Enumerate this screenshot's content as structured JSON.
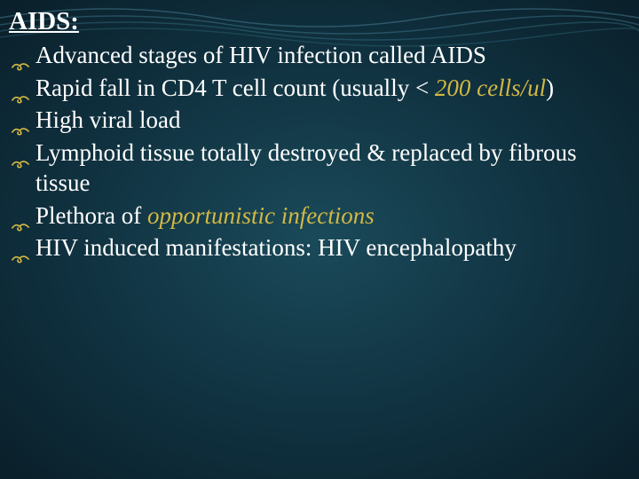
{
  "slide": {
    "title": "AIDS:",
    "bullets": [
      {
        "segments": [
          {
            "text": "Advanced stages of HIV  infection called AIDS",
            "style": "normal"
          }
        ]
      },
      {
        "segments": [
          {
            "text": "Rapid fall in CD4 T cell count (usually < ",
            "style": "normal"
          },
          {
            "text": "200 cells/ul",
            "style": "highlight"
          },
          {
            "text": ")",
            "style": "normal"
          }
        ]
      },
      {
        "segments": [
          {
            "text": "High viral load",
            "style": "normal"
          }
        ]
      },
      {
        "segments": [
          {
            "text": "Lymphoid tissue totally destroyed & replaced by fibrous tissue",
            "style": "normal"
          }
        ]
      },
      {
        "segments": [
          {
            "text": "Plethora of ",
            "style": "normal"
          },
          {
            "text": "opportunistic infections",
            "style": "highlight"
          }
        ]
      },
      {
        "segments": [
          {
            "text": "HIV induced manifestations: HIV encephalopathy",
            "style": "normal"
          }
        ]
      }
    ],
    "colors": {
      "background_center": "#1a4a5a",
      "background_mid": "#0f2f3d",
      "background_edge": "#0a1f2a",
      "text": "#ffffff",
      "highlight": "#d4b843",
      "wave": "#3d7a8c"
    },
    "typography": {
      "title_fontsize": 29,
      "body_fontsize": 27,
      "font_family": "Georgia, serif"
    },
    "bullet_glyph": "swirl-icon"
  }
}
